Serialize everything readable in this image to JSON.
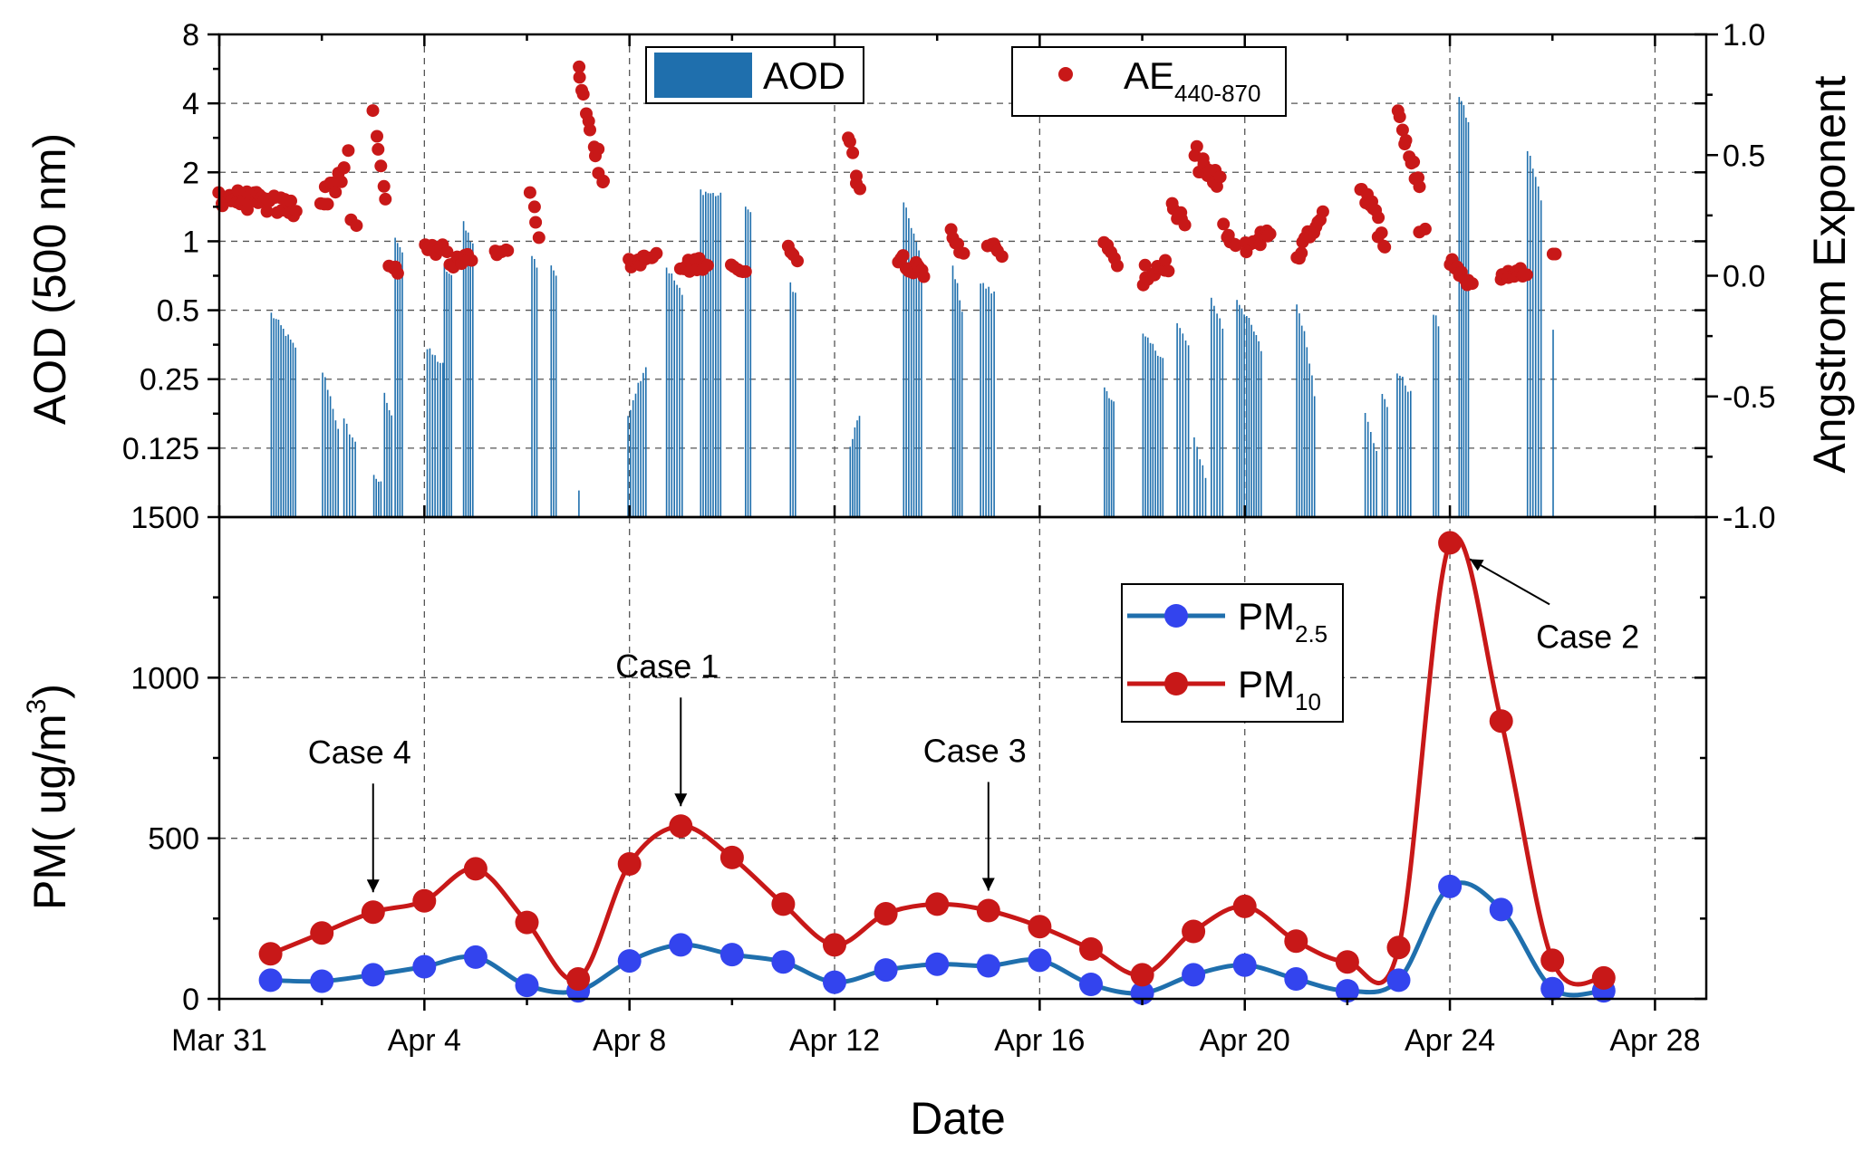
{
  "chart_data": [
    {
      "type": "bar",
      "panel": "top",
      "ylabel": "AOD (500 nm)",
      "y2label": "Angstrom Exponent",
      "yscale": "log2",
      "ylim": [
        0.0625,
        8
      ],
      "yticks": [
        0.125,
        0.25,
        0.5,
        1,
        2,
        4,
        8
      ],
      "ytick_labels": [
        "0.125",
        "0.25",
        "0.5",
        "1",
        "2",
        "4",
        "8"
      ],
      "y2lim": [
        -1.0,
        1.0
      ],
      "y2ticks": [
        -1.0,
        -0.5,
        0.0,
        0.5,
        1.0
      ],
      "y2tick_labels": [
        "-1.0",
        "-0.5",
        "0.0",
        "0.5",
        "1.0"
      ],
      "xlim": [
        "2017-03-31",
        "2017-04-29"
      ],
      "grid": true,
      "legend": [
        {
          "name": "AOD",
          "marker": "bar",
          "color": "#1f6fad"
        },
        {
          "name": "AE",
          "subscript": "440-870",
          "marker": "dot",
          "color": "#c81818"
        }
      ],
      "series": [
        {
          "name": "AOD",
          "color": "#1f6fad",
          "clusters": [
            {
              "start": "2017-04-01T00:00",
              "end": "2017-04-01T12:00",
              "peak": 0.5,
              "decay": 0.3
            },
            {
              "start": "2017-04-02T00:00",
              "end": "2017-04-02T08:00",
              "peak": 0.28,
              "decay": 0.45
            },
            {
              "start": "2017-04-02T10:00",
              "end": "2017-04-02T16:00",
              "peak": 0.17,
              "decay": 0.2
            },
            {
              "start": "2017-04-03T00:00",
              "end": "2017-04-03T04:00",
              "peak": 0.1,
              "decay": 0.1
            },
            {
              "start": "2017-04-03T05:00",
              "end": "2017-04-03T09:00",
              "peak": 0.22,
              "decay": 0.2
            },
            {
              "start": "2017-04-03T10:00",
              "end": "2017-04-03T14:00",
              "peak": 1.1,
              "decay": 0.15
            },
            {
              "start": "2017-04-04T01:00",
              "end": "2017-04-04T09:00",
              "peak": 0.35,
              "decay": 0.15
            },
            {
              "start": "2017-04-04T09:00",
              "end": "2017-04-04T13:00",
              "peak": 0.8,
              "decay": 0.1
            },
            {
              "start": "2017-04-04T18:00",
              "end": "2017-04-04T23:00",
              "peak": 1.25,
              "decay": 0.2
            },
            {
              "start": "2017-04-06T02:00",
              "end": "2017-04-06T05:00",
              "peak": 0.9,
              "decay": 0.1
            },
            {
              "start": "2017-04-06T11:00",
              "end": "2017-04-06T14:00",
              "peak": 0.82,
              "decay": 0.1
            },
            {
              "start": "2017-04-07T00:00",
              "end": "2017-04-07T01:30",
              "peak": 0.082,
              "decay": 0.0
            },
            {
              "start": "2017-04-07T23:00",
              "end": "2017-04-08T08:00",
              "peak": 0.18,
              "decay": -0.65
            },
            {
              "start": "2017-04-08T17:00",
              "end": "2017-04-09T01:00",
              "peak": 0.8,
              "decay": 0.25
            },
            {
              "start": "2017-04-09T09:00",
              "end": "2017-04-09T19:00",
              "peak": 1.72,
              "decay": 0.05
            },
            {
              "start": "2017-04-10T06:00",
              "end": "2017-04-10T09:00",
              "peak": 1.5,
              "decay": 0.1
            },
            {
              "start": "2017-04-11T03:00",
              "end": "2017-04-11T06:00",
              "peak": 0.68,
              "decay": 0.1
            },
            {
              "start": "2017-04-12T07:00",
              "end": "2017-04-12T12:00",
              "peak": 0.13,
              "decay": -0.4
            },
            {
              "start": "2017-04-13T08:00",
              "end": "2017-04-13T17:00",
              "peak": 1.5,
              "decay": 0.45
            },
            {
              "start": "2017-04-14T07:00",
              "end": "2017-04-14T12:00",
              "peak": 0.8,
              "decay": 0.35
            },
            {
              "start": "2017-04-14T20:00",
              "end": "2017-04-15T03:00",
              "peak": 0.68,
              "decay": 0.1
            },
            {
              "start": "2017-04-17T06:00",
              "end": "2017-04-17T11:00",
              "peak": 0.24,
              "decay": 0.15
            },
            {
              "start": "2017-04-18T00:00",
              "end": "2017-04-18T10:00",
              "peak": 0.4,
              "decay": 0.2
            },
            {
              "start": "2017-04-18T16:00",
              "end": "2017-04-18T22:00",
              "peak": 0.45,
              "decay": 0.2
            },
            {
              "start": "2017-04-19T00:00",
              "end": "2017-04-19T06:00",
              "peak": 0.14,
              "decay": 0.3
            },
            {
              "start": "2017-04-19T08:00",
              "end": "2017-04-19T14:00",
              "peak": 0.58,
              "decay": 0.25
            },
            {
              "start": "2017-04-19T20:00",
              "end": "2017-04-20T08:00",
              "peak": 0.58,
              "decay": 0.4
            },
            {
              "start": "2017-04-21T00:00",
              "end": "2017-04-21T09:00",
              "peak": 0.55,
              "decay": 0.6
            },
            {
              "start": "2017-04-22T08:00",
              "end": "2017-04-22T14:00",
              "peak": 0.19,
              "decay": 0.35
            },
            {
              "start": "2017-04-22T16:00",
              "end": "2017-04-22T19:00",
              "peak": 0.22,
              "decay": 0.1
            },
            {
              "start": "2017-04-22T23:00",
              "end": "2017-04-23T06:00",
              "peak": 0.28,
              "decay": 0.2
            },
            {
              "start": "2017-04-23T16:00",
              "end": "2017-04-23T19:00",
              "peak": 0.5,
              "decay": 0.1
            },
            {
              "start": "2017-04-24T04:00",
              "end": "2017-04-24T09:00",
              "peak": 4.5,
              "decay": 0.25
            },
            {
              "start": "2017-04-25T12:00",
              "end": "2017-04-25T19:00",
              "peak": 2.6,
              "decay": 0.4
            },
            {
              "start": "2017-04-26T00:00",
              "end": "2017-04-26T01:00",
              "peak": 0.42,
              "decay": 0.0
            }
          ]
        },
        {
          "name": "AE",
          "color": "#c81818",
          "axis": "right",
          "clusters": [
            {
              "start": "2017-03-31T00:00",
              "end": "2017-04-01T12:00",
              "from": 0.33,
              "to": 0.28,
              "spread": 0.04
            },
            {
              "start": "2017-04-02T00:00",
              "end": "2017-04-02T12:00",
              "from": 0.3,
              "to": 0.47,
              "spread": 0.05
            },
            {
              "start": "2017-04-02T14:00",
              "end": "2017-04-02T16:00",
              "from": 0.22,
              "to": 0.22,
              "spread": 0.02
            },
            {
              "start": "2017-04-03T00:00",
              "end": "2017-04-03T06:00",
              "from": 0.65,
              "to": 0.3,
              "spread": 0.04
            },
            {
              "start": "2017-04-03T08:00",
              "end": "2017-04-03T12:00",
              "from": 0.05,
              "to": 0.03,
              "spread": 0.02
            },
            {
              "start": "2017-04-04T00:00",
              "end": "2017-04-04T10:00",
              "from": 0.1,
              "to": 0.12,
              "spread": 0.03
            },
            {
              "start": "2017-04-04T12:00",
              "end": "2017-04-04T22:00",
              "from": 0.05,
              "to": 0.08,
              "spread": 0.02
            },
            {
              "start": "2017-04-05T09:00",
              "end": "2017-04-05T15:00",
              "from": 0.1,
              "to": 0.12,
              "spread": 0.02
            },
            {
              "start": "2017-04-06T02:00",
              "end": "2017-04-06T06:00",
              "from": 0.32,
              "to": 0.18,
              "spread": 0.03
            },
            {
              "start": "2017-04-07T00:00",
              "end": "2017-04-07T12:00",
              "from": 0.85,
              "to": 0.37,
              "spread": 0.04
            },
            {
              "start": "2017-04-08T00:00",
              "end": "2017-04-08T12:00",
              "from": 0.05,
              "to": 0.08,
              "spread": 0.02
            },
            {
              "start": "2017-04-09T00:00",
              "end": "2017-04-09T12:00",
              "from": 0.03,
              "to": 0.06,
              "spread": 0.03
            },
            {
              "start": "2017-04-10T00:00",
              "end": "2017-04-10T06:00",
              "from": 0.05,
              "to": 0.0,
              "spread": 0.02
            },
            {
              "start": "2017-04-11T02:00",
              "end": "2017-04-11T06:00",
              "from": 0.13,
              "to": 0.08,
              "spread": 0.02
            },
            {
              "start": "2017-04-12T06:00",
              "end": "2017-04-12T12:00",
              "from": 0.57,
              "to": 0.37,
              "spread": 0.04
            },
            {
              "start": "2017-04-13T06:00",
              "end": "2017-04-13T18:00",
              "from": 0.08,
              "to": 0.0,
              "spread": 0.03
            },
            {
              "start": "2017-04-14T06:00",
              "end": "2017-04-14T12:00",
              "from": 0.18,
              "to": 0.1,
              "spread": 0.02
            },
            {
              "start": "2017-04-15T00:00",
              "end": "2017-04-15T06:00",
              "from": 0.14,
              "to": 0.07,
              "spread": 0.03
            },
            {
              "start": "2017-04-17T06:00",
              "end": "2017-04-17T12:00",
              "from": 0.16,
              "to": 0.02,
              "spread": 0.03
            },
            {
              "start": "2017-04-18T00:00",
              "end": "2017-04-18T12:00",
              "from": 0.0,
              "to": 0.05,
              "spread": 0.04
            },
            {
              "start": "2017-04-18T14:00",
              "end": "2017-04-18T20:00",
              "from": 0.28,
              "to": 0.2,
              "spread": 0.03
            },
            {
              "start": "2017-04-19T00:00",
              "end": "2017-04-19T12:00",
              "from": 0.5,
              "to": 0.37,
              "spread": 0.05
            },
            {
              "start": "2017-04-19T14:00",
              "end": "2017-04-19T20:00",
              "from": 0.2,
              "to": 0.1,
              "spread": 0.03
            },
            {
              "start": "2017-04-20T00:00",
              "end": "2017-04-20T12:00",
              "from": 0.12,
              "to": 0.18,
              "spread": 0.03
            },
            {
              "start": "2017-04-21T00:00",
              "end": "2017-04-21T12:00",
              "from": 0.08,
              "to": 0.26,
              "spread": 0.03
            },
            {
              "start": "2017-04-22T06:00",
              "end": "2017-04-22T18:00",
              "from": 0.38,
              "to": 0.14,
              "spread": 0.04
            },
            {
              "start": "2017-04-23T00:00",
              "end": "2017-04-23T10:00",
              "from": 0.66,
              "to": 0.37,
              "spread": 0.04
            },
            {
              "start": "2017-04-23T10:00",
              "end": "2017-04-23T12:00",
              "from": 0.19,
              "to": 0.19,
              "spread": 0.02
            },
            {
              "start": "2017-04-24T00:00",
              "end": "2017-04-24T10:00",
              "from": 0.06,
              "to": -0.04,
              "spread": 0.02
            },
            {
              "start": "2017-04-25T00:00",
              "end": "2017-04-25T12:00",
              "from": 0.0,
              "to": 0.02,
              "spread": 0.02
            },
            {
              "start": "2017-04-26T00:00",
              "end": "2017-04-26T02:00",
              "from": 0.09,
              "to": 0.09,
              "spread": 0.0
            }
          ]
        }
      ]
    },
    {
      "type": "line",
      "panel": "bottom",
      "xlabel": "Date",
      "ylabel": "PM( ug/m³)",
      "ylabel_parts": {
        "main": "PM( ug/m",
        "sup": "3",
        "close": ")"
      },
      "ylim": [
        0,
        1500
      ],
      "yticks": [
        0,
        500,
        1000,
        1500
      ],
      "ytick_labels": [
        "0",
        "500",
        "1000",
        "1500"
      ],
      "xlim": [
        "2017-03-31",
        "2017-04-29"
      ],
      "xticks": [
        "2017-03-31",
        "2017-04-04",
        "2017-04-08",
        "2017-04-12",
        "2017-04-16",
        "2017-04-20",
        "2017-04-24",
        "2017-04-28"
      ],
      "xtick_labels": [
        "Mar 31",
        "Apr 4",
        "Apr 8",
        "Apr 12",
        "Apr 16",
        "Apr 20",
        "Apr 24",
        "Apr 28"
      ],
      "grid": true,
      "legend": [
        {
          "name": "PM",
          "subscript": "2.5",
          "color": "#1f6fad",
          "marker_color": "#3344ee"
        },
        {
          "name": "PM",
          "subscript": "10",
          "color": "#c81818",
          "marker_color": "#c81818"
        }
      ],
      "x": [
        "2017-04-01",
        "2017-04-02",
        "2017-04-03",
        "2017-04-04",
        "2017-04-05",
        "2017-04-06",
        "2017-04-07",
        "2017-04-08",
        "2017-04-09",
        "2017-04-10",
        "2017-04-11",
        "2017-04-12",
        "2017-04-13",
        "2017-04-14",
        "2017-04-15",
        "2017-04-16",
        "2017-04-17",
        "2017-04-18",
        "2017-04-19",
        "2017-04-20",
        "2017-04-21",
        "2017-04-22",
        "2017-04-23",
        "2017-04-24",
        "2017-04-25",
        "2017-04-26",
        "2017-04-27"
      ],
      "series": [
        {
          "name": "PM2.5",
          "color": "#1f6fad",
          "marker_color": "#3344ee",
          "values": [
            58,
            55,
            75,
            100,
            130,
            42,
            25,
            118,
            168,
            138,
            115,
            52,
            90,
            108,
            103,
            120,
            45,
            18,
            75,
            105,
            62,
            25,
            58,
            350,
            278,
            32,
            25
          ]
        },
        {
          "name": "PM10",
          "color": "#c81818",
          "marker_color": "#c81818",
          "values": [
            140,
            205,
            270,
            305,
            405,
            238,
            62,
            420,
            538,
            440,
            295,
            168,
            265,
            295,
            275,
            225,
            155,
            75,
            210,
            288,
            180,
            115,
            160,
            1420,
            865,
            120,
            65
          ]
        }
      ],
      "annotations": [
        {
          "text": "Case 4",
          "x": "2017-04-03",
          "y": 270,
          "direction": "down"
        },
        {
          "text": "Case 1",
          "x": "2017-04-09",
          "y": 538,
          "direction": "down"
        },
        {
          "text": "Case 3",
          "x": "2017-04-15",
          "y": 275,
          "direction": "down"
        },
        {
          "text": "Case 2",
          "x": "2017-04-24",
          "y": 1420,
          "direction": "left"
        }
      ]
    }
  ]
}
